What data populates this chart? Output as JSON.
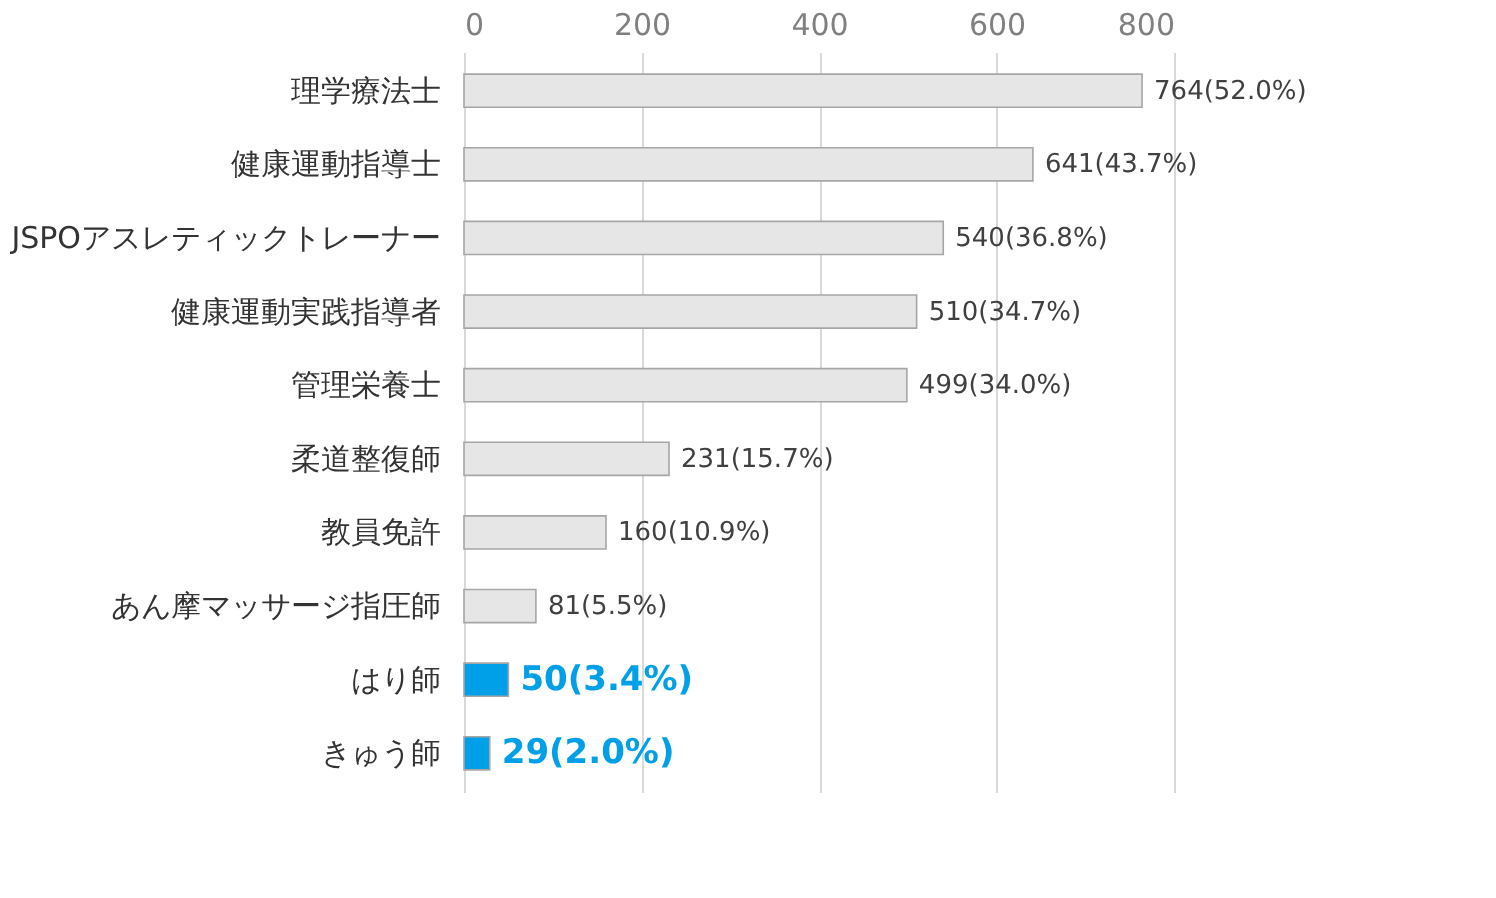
{
  "chart_data": {
    "type": "bar",
    "orientation": "horizontal",
    "categories": [
      "理学療法士",
      "健康運動指導士",
      "JSPOアスレティックトレーナー",
      "健康運動実践指導者",
      "管理栄養士",
      "柔道整復師",
      "教員免許",
      "あん摩マッサージ指圧師",
      "はり師",
      "きゅう師"
    ],
    "values": [
      764,
      641,
      540,
      510,
      499,
      231,
      160,
      81,
      50,
      29
    ],
    "colors": [
      "#e6e6e6",
      "#e6e6e6",
      "#e6e6e6",
      "#e6e6e6",
      "#e6e6e6",
      "#e6e6e6",
      "#e6e6e6",
      "#e6e6e6",
      "#00a0e9",
      "#00a0e9"
    ],
    "value_labels": [
      "764(52.0%)",
      "641(43.7%)",
      "540(36.8%)",
      "510(34.7%)",
      "499(34.0%)",
      "231(15.7%)",
      "160(10.9%)",
      "81(5.5%)",
      "50(3.4%)",
      "29(2.0%)"
    ],
    "xlim": [
      0,
      800
    ],
    "xticks": [
      0,
      200,
      400,
      600,
      800
    ],
    "grid": "x"
  }
}
